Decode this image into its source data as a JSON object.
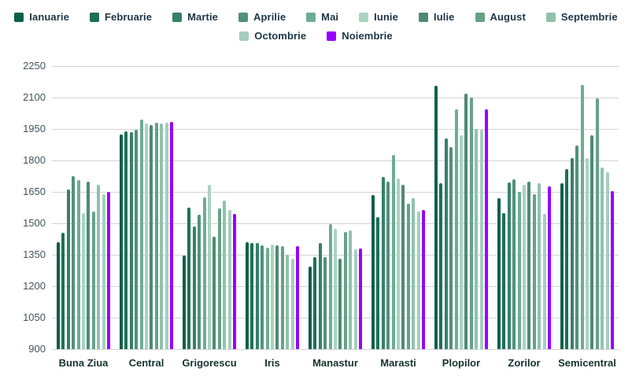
{
  "chart_data": {
    "type": "bar",
    "title": "",
    "xlabel": "",
    "ylabel": "",
    "grid": true,
    "legend_position": "top",
    "ylim": [
      900,
      2250
    ],
    "yticks": [
      900,
      1050,
      1200,
      1350,
      1500,
      1650,
      1800,
      1950,
      2100,
      2250
    ],
    "categories": [
      "Buna Ziua",
      "Central",
      "Grigorescu",
      "Iris",
      "Manastur",
      "Marasti",
      "Plopilor",
      "Zorilor",
      "Semicentral"
    ],
    "series": [
      {
        "name": "Ianuarie",
        "color": "#0d6048",
        "values": [
          1410,
          1925,
          1345,
          1410,
          1295,
          1635,
          2155,
          1620,
          1690
        ]
      },
      {
        "name": "Februarie",
        "color": "#1d7054",
        "values": [
          1455,
          1940,
          1575,
          1405,
          1340,
          1530,
          1690,
          1550,
          1760
        ]
      },
      {
        "name": "Martie",
        "color": "#37806a",
        "values": [
          1660,
          1935,
          1485,
          1405,
          1405,
          1720,
          1905,
          1695,
          1810
        ]
      },
      {
        "name": "Aprilie",
        "color": "#4f927c",
        "values": [
          1725,
          1945,
          1540,
          1395,
          1340,
          1700,
          1865,
          1710,
          1870
        ]
      },
      {
        "name": "Mai",
        "color": "#6fac94",
        "values": [
          1705,
          1995,
          1625,
          1385,
          1495,
          1825,
          2045,
          1650,
          2160
        ]
      },
      {
        "name": "Iunie",
        "color": "#a9d4bf",
        "values": [
          1550,
          1975,
          1685,
          1400,
          1475,
          1715,
          1920,
          1685,
          1810
        ]
      },
      {
        "name": "Iulie",
        "color": "#4d8a74",
        "values": [
          1700,
          1970,
          1435,
          1395,
          1330,
          1685,
          2120,
          1700,
          1920
        ]
      },
      {
        "name": "August",
        "color": "#66a18a",
        "values": [
          1555,
          1980,
          1570,
          1390,
          1460,
          1595,
          2100,
          1640,
          2095
        ]
      },
      {
        "name": "Septembrie",
        "color": "#8fc2ac",
        "values": [
          1685,
          1975,
          1610,
          1350,
          1465,
          1620,
          1950,
          1690,
          1765
        ]
      },
      {
        "name": "Octombrie",
        "color": "#a6cebc",
        "values": [
          1640,
          1980,
          1565,
          1330,
          1375,
          1555,
          1945,
          1545,
          1745
        ]
      },
      {
        "name": "Noiembrie",
        "color": "#9900ff",
        "values": [
          1650,
          1985,
          1545,
          1390,
          1380,
          1565,
          2045,
          1675,
          1655
        ]
      }
    ]
  },
  "colors": {
    "gridline": "#d4d4d4",
    "tick_text": "#42545e",
    "category_text": "#14332b",
    "legend_text": "#1c3545",
    "background": "#ffffff"
  }
}
